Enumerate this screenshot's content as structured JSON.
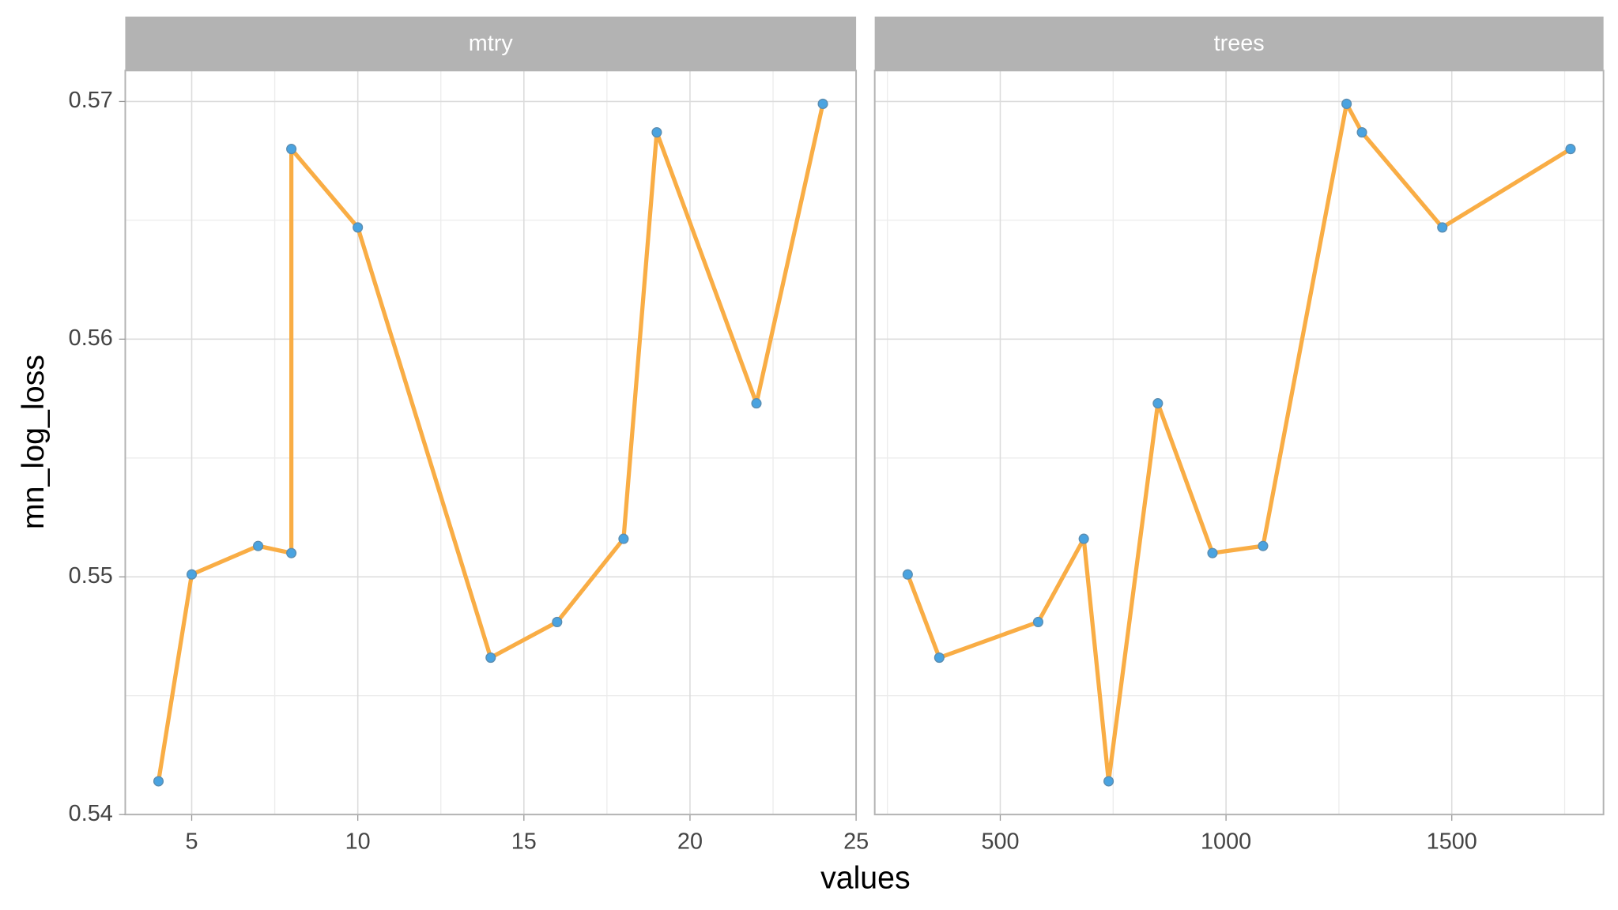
{
  "chart_data": {
    "type": "line",
    "x_label": "values",
    "y_label": "mn_log_loss",
    "ylim": [
      0.54,
      0.5713
    ],
    "yticks": [
      0.54,
      0.55,
      0.56,
      0.57
    ],
    "y_minor_ticks": [
      0.545,
      0.555,
      0.565
    ],
    "grid": true,
    "line_color": "#f9ad45",
    "point_color": "#4aa3e0",
    "facets": [
      {
        "title": "mtry",
        "xlim": [
          3,
          25
        ],
        "xticks": [
          5,
          10,
          15,
          20,
          25
        ],
        "x_minor_ticks": [
          7.5,
          12.5,
          17.5,
          22.5
        ],
        "x": [
          4,
          5,
          7,
          8,
          8,
          10,
          14,
          16,
          18,
          19,
          22,
          24
        ],
        "values": [
          0.5414,
          0.5501,
          0.5513,
          0.551,
          0.568,
          0.5647,
          0.5466,
          0.5481,
          0.5516,
          0.5687,
          0.5573,
          0.5699
        ]
      },
      {
        "title": "trees",
        "xlim": [
          222,
          1836
        ],
        "xticks": [
          500,
          1000,
          1500
        ],
        "x_minor_ticks": [
          250,
          750,
          1250,
          1750
        ],
        "x": [
          295,
          365,
          584,
          685,
          740,
          849,
          970,
          1082,
          1267,
          1301,
          1479,
          1763
        ],
        "values": [
          0.5501,
          0.5466,
          0.5481,
          0.5516,
          0.5414,
          0.5573,
          0.551,
          0.5513,
          0.5699,
          0.5687,
          0.5647,
          0.568
        ]
      }
    ]
  }
}
